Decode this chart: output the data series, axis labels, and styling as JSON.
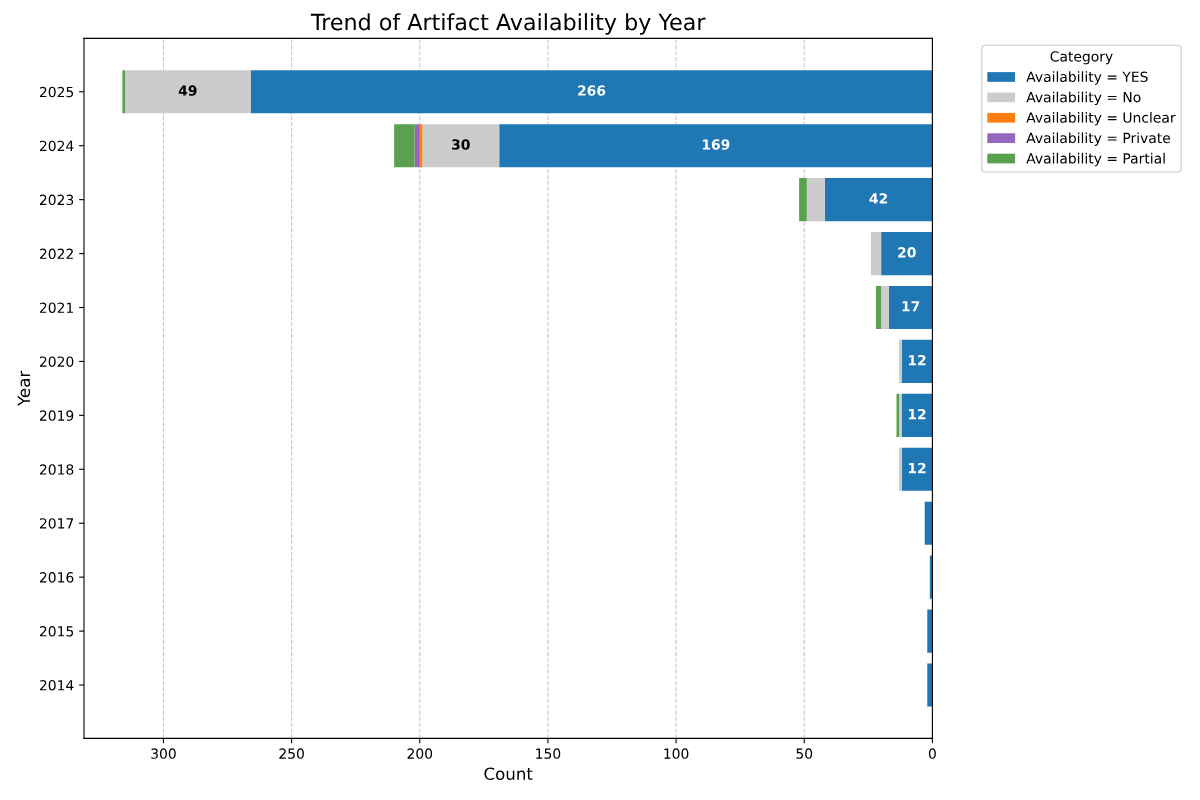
{
  "chart_data": {
    "type": "bar",
    "orientation": "horizontal",
    "stacked": true,
    "title": "Trend of Artifact Availability by Year",
    "xlabel": "Count",
    "ylabel": "Year",
    "legend_title": "Category",
    "categories": [
      "2025",
      "2024",
      "2023",
      "2022",
      "2021",
      "2020",
      "2019",
      "2018",
      "2017",
      "2016",
      "2015",
      "2014"
    ],
    "series": [
      {
        "name": "Availability = YES",
        "color": "#1f77b4",
        "values": [
          266,
          169,
          42,
          20,
          17,
          12,
          12,
          12,
          3,
          1,
          2,
          2
        ],
        "value_labels": [
          "266",
          "169",
          "42",
          "20",
          "17",
          "12",
          "12",
          "12",
          null,
          null,
          null,
          null
        ]
      },
      {
        "name": "Availability = No",
        "color": "#cccccc",
        "values": [
          49,
          30,
          7,
          4,
          3,
          1,
          1,
          1,
          0,
          0,
          0,
          0
        ],
        "value_labels": [
          "49",
          "30",
          null,
          null,
          null,
          null,
          null,
          null,
          null,
          null,
          null,
          null
        ]
      },
      {
        "name": "Availability = Unclear",
        "color": "#ff7f0e",
        "values": [
          0,
          1,
          0,
          0,
          0,
          0,
          0,
          0,
          0,
          0,
          0,
          0
        ]
      },
      {
        "name": "Availability = Private",
        "color": "#9467bd",
        "values": [
          0,
          2,
          0,
          0,
          0,
          0,
          0,
          0,
          0,
          0,
          0,
          0
        ]
      },
      {
        "name": "Availability = Partial",
        "color": "#59a14f",
        "values": [
          1,
          8,
          3,
          0,
          2,
          0,
          1,
          0,
          0,
          0,
          0,
          0
        ]
      }
    ],
    "xlim": [
      331,
      0
    ],
    "xticks": [
      300,
      250,
      200,
      150,
      100,
      50,
      0
    ],
    "grid": "x",
    "legend": "top right"
  }
}
